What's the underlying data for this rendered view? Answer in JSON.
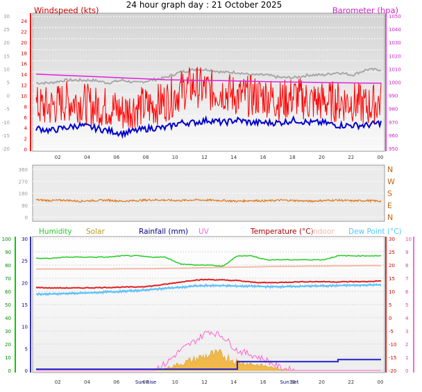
{
  "title": "24 hour graph day : 21 October 2025",
  "colors": {
    "wind": "#ff0000",
    "gust_avg": "#0000cc",
    "baro": "#e020e0",
    "baro_grey": "#a8a8a8",
    "dir": "#e07818",
    "humidity": "#22cc22",
    "solar": "#f2b33a",
    "rain": "#2020c8",
    "uv": "#ff66cc",
    "temp": "#e02020",
    "indoor": "#f6b8a8",
    "dew": "#4ec8ff",
    "dew_dark": "#8ab0e8"
  },
  "chart_data": [
    {
      "type": "line",
      "name": "wind-baro",
      "left_label": "Windspeed (kts)",
      "right_label": "Barometer (hpa)",
      "x_ticks": [
        "02",
        "04",
        "06",
        "08",
        "10",
        "12",
        "14",
        "16",
        "18",
        "20",
        "22",
        "00"
      ],
      "outer_left_ticks": [
        "30",
        "25",
        "20",
        "15",
        "10",
        "5",
        "0",
        "-5",
        "-10",
        "-15",
        "-20"
      ],
      "inner_left_ticks": [
        "24",
        "22",
        "20",
        "18",
        "16",
        "14",
        "12",
        "10",
        "8",
        "6",
        "4",
        "2",
        "0"
      ],
      "right_ticks": [
        "1050",
        "1040",
        "1030",
        "1020",
        "1010",
        "1000",
        "990",
        "980",
        "970",
        "960",
        "950"
      ],
      "ylim_kts": [
        0,
        25
      ],
      "ylim_hpa": [
        945,
        1050
      ],
      "series": [
        {
          "key": "baro",
          "values_hpa": [
            1004.5,
            1004,
            1003.5,
            1003,
            1002.5,
            1002,
            1001.5,
            1001,
            1000.5,
            1000,
            999.8,
            999.5,
            999.5,
            999.3,
            999,
            998.8,
            998.5,
            998.3,
            998.1,
            998,
            997.8,
            997.6,
            997.5,
            997.4,
            997.3
          ]
        },
        {
          "key": "dir_range",
          "values_kts": [
            12.5,
            12.5,
            13,
            13,
            13,
            12.5,
            13,
            12.5,
            13,
            13.5,
            14.5,
            15,
            15,
            14.5,
            14.5,
            14,
            14,
            13.5,
            13.5,
            14,
            14,
            14.5,
            14,
            15,
            15
          ]
        },
        {
          "key": "wind_speed",
          "values_kts": [
            4,
            3.5,
            4,
            4.5,
            4,
            3.5,
            3,
            3.5,
            4,
            4,
            5,
            5,
            5.5,
            5,
            5.5,
            5,
            5,
            5,
            5.5,
            5,
            5,
            4.5,
            4.5,
            4.5,
            5
          ]
        },
        {
          "key": "wind_gust",
          "values_kts": [
            8,
            8,
            9,
            9,
            8,
            8,
            7,
            8,
            8,
            9,
            11,
            12,
            11,
            11,
            10,
            10,
            10,
            9,
            10,
            9,
            9,
            9,
            9,
            8,
            9
          ]
        }
      ]
    },
    {
      "type": "line",
      "name": "wind-direction",
      "left_ticks": [
        "360",
        "270",
        "180",
        "90",
        "0"
      ],
      "right_ticks": [
        "N",
        "W",
        "S",
        "E",
        "N"
      ],
      "ylim_deg": [
        0,
        360
      ],
      "series": [
        {
          "key": "direction",
          "values_deg": [
            130,
            125,
            128,
            120,
            125,
            128,
            120,
            125,
            130,
            128,
            125,
            130,
            128,
            125,
            120,
            125,
            122,
            128,
            125,
            120,
            125,
            128,
            122,
            125,
            120
          ]
        }
      ]
    },
    {
      "type": "line",
      "name": "temp-hum-rain",
      "legend": [
        "Humidity",
        "Solar",
        "Rainfall (mm)",
        "UV",
        "Temperature (°C)",
        "Indoor",
        "Dew Point (°C)"
      ],
      "hum_ticks": [
        "100",
        "90",
        "80",
        "70",
        "60",
        "50",
        "40",
        "30",
        "20",
        "10",
        "0"
      ],
      "rain_ticks": [
        "30",
        "25",
        "20",
        "15",
        "10",
        "5",
        "0"
      ],
      "temp_ticks": [
        "30",
        "25",
        "20",
        "15",
        "10",
        "5",
        "0",
        "-5",
        "-10",
        "-15",
        "-20"
      ],
      "uv_ticks": [
        "10",
        "9",
        "8",
        "7",
        "6",
        "5",
        "4",
        "3",
        "2",
        "1",
        "0"
      ],
      "x_ticks": [
        "02",
        "04",
        "06",
        "Sun Rise",
        "08",
        "10",
        "12",
        "14",
        "16",
        "Sun Set",
        "18",
        "20",
        "22",
        "00"
      ],
      "ylim_hum": [
        0,
        100
      ],
      "ylim_temp": [
        -20,
        30
      ],
      "series": [
        {
          "key": "humidity",
          "values": [
            85,
            85,
            86,
            86,
            86,
            86,
            87,
            87,
            86,
            86,
            81,
            80,
            80,
            79,
            87,
            87,
            84,
            84,
            84,
            84,
            84,
            87,
            87,
            87,
            87
          ]
        },
        {
          "key": "indoor",
          "values": [
            18.5,
            18.5,
            18.5,
            18.5,
            18.5,
            18.5,
            18.6,
            18.6,
            18.6,
            18.7,
            18.8,
            18.9,
            19,
            19.1,
            19.2,
            19.3,
            19.4,
            19.5,
            19.5,
            19.6,
            19.6,
            19.7,
            19.7,
            19.8,
            19.8
          ]
        },
        {
          "key": "temperature",
          "values": [
            11.5,
            11.3,
            11.3,
            11.3,
            11.4,
            11.5,
            11.6,
            11.7,
            12,
            12.7,
            13.5,
            14.3,
            14.5,
            14.3,
            14.1,
            13.5,
            13.3,
            13.4,
            13.6,
            13.7,
            13.7,
            13.6,
            13.7,
            13.7,
            14
          ]
        },
        {
          "key": "dewpoint",
          "values": [
            9,
            9,
            9.2,
            9.3,
            9.5,
            9.8,
            10,
            10.3,
            10.7,
            11.2,
            11.5,
            12,
            12.2,
            12.2,
            12,
            12,
            11.8,
            11.8,
            11.9,
            12,
            12.1,
            12.2,
            12.3,
            12.4,
            12.5
          ]
        },
        {
          "key": "rain_mm",
          "values": [
            0.3,
            0.3,
            0.3,
            0.3,
            0.3,
            0.3,
            0.3,
            0.3,
            0.3,
            0.3,
            0.3,
            0.3,
            0.3,
            0.3,
            2,
            2,
            2,
            2,
            2,
            2,
            2,
            2.5,
            2.5,
            2.5,
            2.5
          ]
        },
        {
          "key": "solar",
          "values": [
            0,
            0,
            0,
            0,
            0,
            0,
            0,
            0,
            0,
            0.5,
            1.5,
            2.5,
            3.5,
            3.5,
            2,
            1.5,
            1,
            0.3,
            0,
            0,
            0,
            0,
            0,
            0,
            0
          ]
        },
        {
          "key": "uv",
          "values": [
            0,
            0,
            0,
            0,
            0,
            0,
            0,
            0,
            0,
            0.5,
            1.5,
            2.2,
            3,
            2.6,
            1.5,
            1.2,
            0.8,
            0.2,
            0,
            0,
            0,
            0,
            0,
            0,
            0
          ]
        }
      ]
    }
  ]
}
